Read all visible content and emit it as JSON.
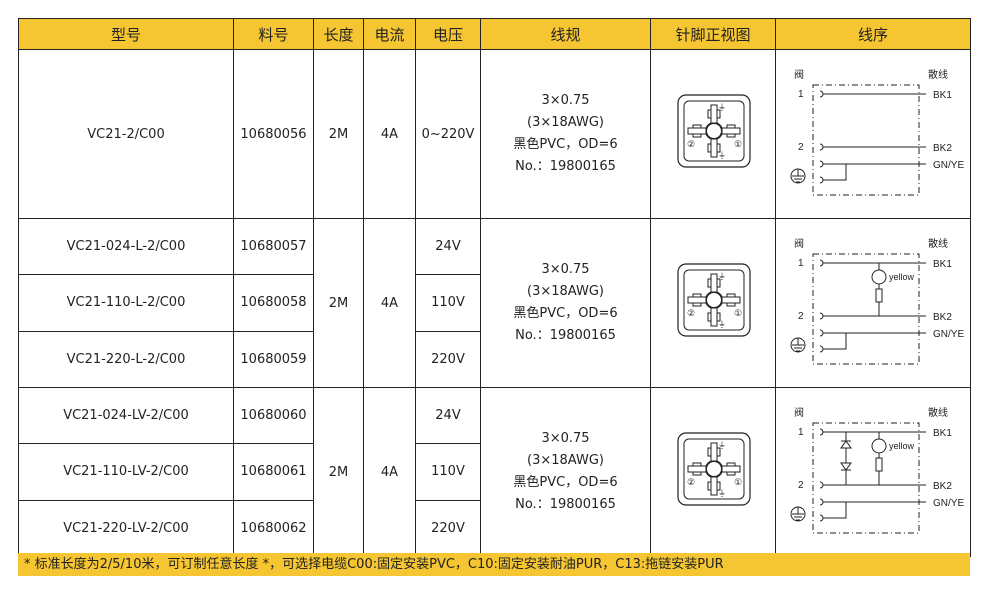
{
  "headers": [
    "型号",
    "料号",
    "长度",
    "电流",
    "电压",
    "线规",
    "针脚正视图",
    "线序"
  ],
  "groups": [
    {
      "length": "2M",
      "current": "4A",
      "wiring": "plain",
      "cable": {
        "l1": "3×0.75",
        "l2": "(3×18AWG)",
        "l3": "黑色PVC，OD=6",
        "l4": "No.：19800165"
      },
      "rows": [
        {
          "model": "VC21-2/C00",
          "part": "10680056",
          "voltage": "0~220V"
        }
      ]
    },
    {
      "length": "2M",
      "current": "4A",
      "wiring": "led",
      "cable": {
        "l1": "3×0.75",
        "l2": "(3×18AWG)",
        "l3": "黑色PVC，OD=6",
        "l4": "No.：19800165"
      },
      "rows": [
        {
          "model": "VC21-024-L-2/C00",
          "part": "10680057",
          "voltage": "24V"
        },
        {
          "model": "VC21-110-L-2/C00",
          "part": "10680058",
          "voltage": "110V"
        },
        {
          "model": "VC21-220-L-2/C00",
          "part": "10680059",
          "voltage": "220V"
        }
      ]
    },
    {
      "length": "2M",
      "current": "4A",
      "wiring": "led-diode",
      "cable": {
        "l1": "3×0.75",
        "l2": "(3×18AWG)",
        "l3": "黑色PVC，OD=6",
        "l4": "No.：19800165"
      },
      "rows": [
        {
          "model": "VC21-024-LV-2/C00",
          "part": "10680060",
          "voltage": "24V"
        },
        {
          "model": "VC21-110-LV-2/C00",
          "part": "10680061",
          "voltage": "110V"
        },
        {
          "model": "VC21-220-LV-2/C00",
          "part": "10680062",
          "voltage": "220V"
        }
      ]
    }
  ],
  "wiring_labels": {
    "valve": "阀",
    "loose": "散线",
    "pin1": "1",
    "pin2": "2",
    "bk1": "BK1",
    "bk2": "BK2",
    "gnye": "GN/YE",
    "led": "yellow"
  },
  "pin_labels": {
    "p1": "①",
    "p2": "②",
    "gnd": "⏚"
  },
  "footer": "* 标准长度为2/5/10米，可订制任意长度 *，可选择电缆C00:固定安装PVC，C10:固定安装耐油PUR，C13:拖链安装PUR",
  "colors": {
    "header": "#f5c632"
  }
}
